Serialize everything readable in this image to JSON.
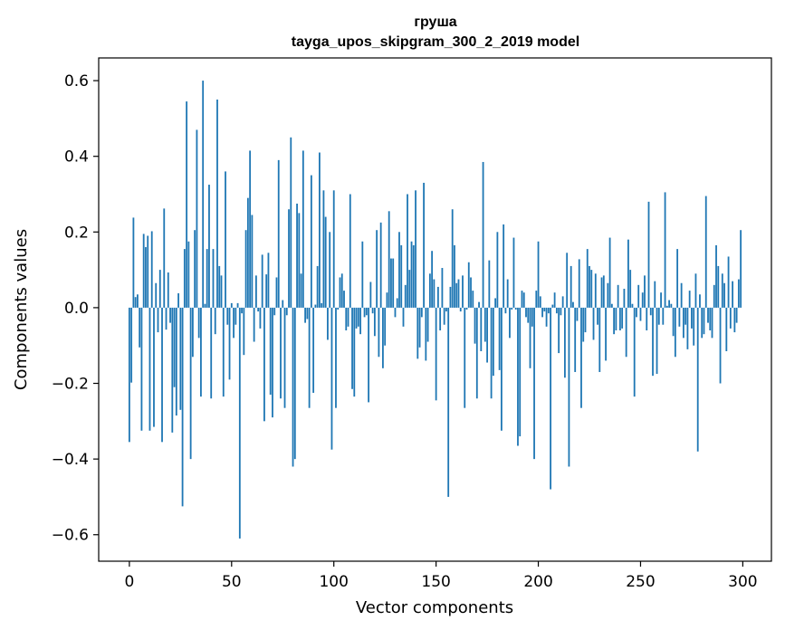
{
  "chart_data": {
    "type": "bar",
    "title": "груша",
    "subtitle": "tayga_upos_skipgram_300_2_2019 model",
    "xlabel": "Vector components",
    "ylabel": "Components values",
    "xlim": [
      -15,
      314
    ],
    "ylim": [
      -0.67,
      0.66
    ],
    "xticks": [
      0,
      50,
      100,
      150,
      200,
      250,
      300
    ],
    "xtick_labels": [
      "0",
      "50",
      "100",
      "150",
      "200",
      "250",
      "300"
    ],
    "yticks": [
      -0.6,
      -0.4,
      -0.2,
      0.0,
      0.2,
      0.4,
      0.6
    ],
    "ytick_labels": [
      "−0.6",
      "−0.4",
      "−0.2",
      "0.0",
      "0.2",
      "0.4",
      "0.6"
    ],
    "bar_color": "#1f77b4",
    "grid": false,
    "values": [
      -0.355,
      -0.198,
      0.238,
      0.028,
      0.035,
      -0.105,
      -0.325,
      0.195,
      0.16,
      0.19,
      -0.325,
      0.202,
      -0.315,
      0.065,
      -0.065,
      0.1,
      -0.355,
      0.262,
      -0.058,
      0.093,
      -0.04,
      -0.33,
      -0.21,
      -0.285,
      0.038,
      -0.27,
      -0.525,
      0.155,
      0.545,
      0.175,
      -0.4,
      -0.13,
      0.205,
      0.47,
      -0.08,
      -0.235,
      0.6,
      0.01,
      0.155,
      0.325,
      -0.24,
      0.155,
      -0.07,
      0.55,
      0.11,
      0.085,
      -0.235,
      0.36,
      -0.045,
      -0.19,
      0.012,
      -0.08,
      -0.045,
      0.012,
      -0.61,
      -0.015,
      -0.125,
      0.205,
      0.29,
      0.415,
      0.245,
      -0.09,
      0.085,
      -0.01,
      -0.055,
      0.14,
      -0.3,
      0.088,
      0.145,
      -0.23,
      -0.29,
      -0.02,
      0.08,
      0.39,
      -0.24,
      0.02,
      -0.265,
      -0.02,
      0.26,
      0.45,
      -0.42,
      -0.4,
      0.275,
      0.25,
      0.09,
      0.415,
      -0.04,
      -0.03,
      -0.265,
      0.35,
      -0.225,
      0.008,
      0.11,
      0.41,
      0.012,
      0.31,
      0.24,
      -0.085,
      0.2,
      -0.375,
      0.31,
      -0.265,
      -0.005,
      0.08,
      0.09,
      0.045,
      -0.06,
      -0.05,
      0.3,
      -0.215,
      -0.235,
      -0.055,
      -0.05,
      -0.07,
      0.175,
      -0.025,
      -0.02,
      -0.25,
      0.068,
      -0.015,
      -0.075,
      0.205,
      -0.13,
      0.225,
      -0.16,
      -0.1,
      0.04,
      0.255,
      0.13,
      0.13,
      -0.025,
      0.025,
      0.2,
      0.165,
      -0.05,
      0.06,
      0.3,
      0.1,
      0.175,
      0.165,
      0.31,
      -0.135,
      -0.105,
      -0.025,
      0.33,
      -0.14,
      -0.09,
      0.09,
      0.15,
      0.075,
      -0.245,
      0.055,
      -0.06,
      0.105,
      -0.045,
      -0.01,
      -0.5,
      0.055,
      0.26,
      0.165,
      0.065,
      0.075,
      -0.01,
      0.085,
      -0.265,
      -0.005,
      0.12,
      0.08,
      0.045,
      -0.095,
      -0.24,
      0.015,
      -0.115,
      0.385,
      -0.09,
      -0.145,
      0.125,
      -0.24,
      -0.18,
      0.025,
      0.2,
      -0.165,
      -0.325,
      0.22,
      -0.015,
      0.075,
      -0.08,
      -0.005,
      0.185,
      -0.005,
      -0.365,
      -0.34,
      0.045,
      0.04,
      -0.025,
      -0.04,
      -0.16,
      -0.05,
      -0.4,
      0.045,
      0.175,
      0.03,
      -0.025,
      -0.01,
      -0.05,
      -0.015,
      -0.48,
      0.008,
      0.04,
      -0.015,
      -0.12,
      -0.02,
      0.03,
      -0.185,
      0.145,
      -0.42,
      0.11,
      0.015,
      -0.17,
      -0.035,
      0.128,
      -0.265,
      -0.09,
      -0.065,
      0.155,
      0.11,
      0.1,
      -0.085,
      0.09,
      -0.045,
      -0.17,
      0.08,
      0.085,
      -0.14,
      0.065,
      0.185,
      0.01,
      -0.07,
      -0.06,
      0.06,
      -0.06,
      -0.055,
      0.05,
      -0.13,
      0.18,
      0.1,
      0.01,
      -0.235,
      -0.025,
      0.06,
      -0.035,
      0.04,
      0.085,
      -0.06,
      0.28,
      -0.02,
      -0.18,
      0.07,
      -0.175,
      -0.045,
      0.04,
      -0.045,
      0.305,
      0.005,
      0.02,
      0.01,
      -0.075,
      -0.13,
      0.155,
      -0.05,
      0.065,
      -0.08,
      -0.045,
      -0.11,
      0.045,
      -0.055,
      -0.1,
      0.09,
      -0.38,
      0.035,
      -0.08,
      -0.07,
      0.295,
      -0.04,
      -0.06,
      -0.08,
      0.06,
      0.165,
      0.11,
      -0.2,
      0.09,
      0.065,
      -0.115,
      0.135,
      -0.055,
      0.07,
      -0.065,
      -0.04,
      0.075,
      0.205
    ]
  }
}
